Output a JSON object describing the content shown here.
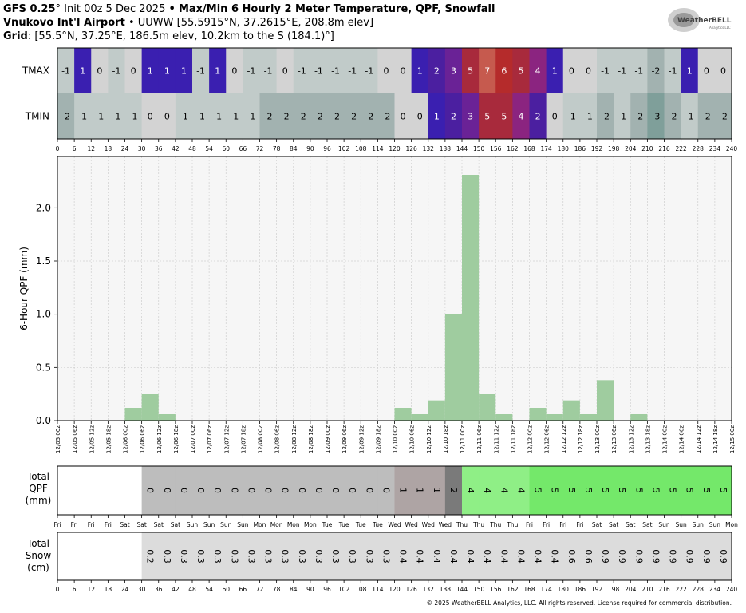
{
  "header": {
    "line1_model": "GFS 0.25",
    "line1_init": "° Init 00z 5 Dec 2025",
    "line1_sep": "•",
    "line1_title": "Max/Min 6 Hourly 2 Meter Temperature, QPF, Snowfall",
    "line2_site": "Vnukovo Int'l Airport",
    "line2_sep": "•",
    "line2_info": "UUWW [55.5915°N, 37.2615°E, 208.8m elev]",
    "line3_label": "Grid",
    "line3_info": ": [55.5°N, 37.25°E, 186.5m elev, 10.2km to the S (184.1)°]"
  },
  "logo": {
    "text": "WeatherBELL",
    "sub": "Analytics LLC"
  },
  "temp_panel": {
    "row_labels": [
      "TMAX",
      "TMIN"
    ],
    "tmax": [
      -1,
      1,
      0,
      -1,
      0,
      1,
      1,
      1,
      -1,
      1,
      0,
      -1,
      -1,
      0,
      -1,
      -1,
      -1,
      -1,
      -1,
      0,
      0,
      1,
      2,
      3,
      5,
      7,
      6,
      5,
      4,
      1,
      0,
      0,
      -1,
      -1,
      -1,
      -2,
      -1,
      1,
      0,
      0
    ],
    "tmin": [
      -2,
      -1,
      -1,
      -1,
      -1,
      0,
      0,
      -1,
      -1,
      -1,
      -1,
      -1,
      -2,
      -2,
      -2,
      -2,
      -2,
      -2,
      -2,
      -2,
      0,
      0,
      1,
      2,
      3,
      5,
      5,
      4,
      2,
      0,
      -1,
      -1,
      -2,
      -1,
      -2,
      -3,
      -2,
      -1,
      -2,
      -2
    ],
    "hour_ticks": [
      0,
      6,
      12,
      18,
      24,
      30,
      36,
      42,
      48,
      54,
      60,
      66,
      72,
      78,
      84,
      90,
      96,
      102,
      108,
      114,
      120,
      126,
      132,
      138,
      144,
      150,
      156,
      162,
      168,
      174,
      180,
      186,
      192,
      198,
      204,
      210,
      216,
      222,
      228,
      234,
      240
    ]
  },
  "chart_data": {
    "type": "bar",
    "ylabel": "6-Hour QPF (mm)",
    "ylim": [
      0,
      2.4
    ],
    "yticks": [
      "0.0",
      "0.5",
      "1.0",
      "1.5",
      "2.0"
    ],
    "grid": true,
    "categories": [
      "12/05 00z",
      "12/05 06z",
      "12/05 12z",
      "12/05 18z",
      "12/06 00z",
      "12/06 06z",
      "12/06 12z",
      "12/06 18z",
      "12/07 00z",
      "12/07 06z",
      "12/07 12z",
      "12/07 18z",
      "12/08 00z",
      "12/08 06z",
      "12/08 12z",
      "12/08 18z",
      "12/09 00z",
      "12/09 06z",
      "12/09 12z",
      "12/09 18z",
      "12/10 00z",
      "12/10 06z",
      "12/10 12z",
      "12/10 18z",
      "12/11 00z",
      "12/11 06z",
      "12/11 12z",
      "12/11 18z",
      "12/12 00z",
      "12/12 06z",
      "12/12 12z",
      "12/12 18z",
      "12/13 00z",
      "12/13 06z",
      "12/13 12z",
      "12/13 18z",
      "12/14 00z",
      "12/14 06z",
      "12/14 12z",
      "12/14 18z",
      "12/15 00z"
    ],
    "values": [
      0,
      0,
      0,
      0,
      0.12,
      0.25,
      0.06,
      0,
      0,
      0,
      0,
      0,
      0,
      0,
      0,
      0,
      0,
      0,
      0,
      0,
      0.12,
      0.06,
      0.19,
      1.0,
      2.31,
      0.25,
      0.06,
      0,
      0.12,
      0.06,
      0.19,
      0.06,
      0.38,
      0,
      0.06,
      0,
      0,
      0,
      0,
      0,
      0
    ]
  },
  "total_qpf": {
    "label_lines": [
      "Total",
      "QPF",
      "(mm)"
    ],
    "values": [
      "",
      "",
      "",
      "",
      "",
      "0",
      "0",
      "0",
      "0",
      "0",
      "0",
      "0",
      "0",
      "0",
      "0",
      "0",
      "0",
      "0",
      "0",
      "0",
      "1",
      "1",
      "1",
      "2",
      "4",
      "4",
      "4",
      "4",
      "5",
      "5",
      "5",
      "5",
      "5",
      "5",
      "5",
      "5",
      "5",
      "5",
      "5",
      "5"
    ],
    "days": [
      "Fri",
      "Fri",
      "Fri",
      "Fri",
      "Sat",
      "Sat",
      "Sat",
      "Sat",
      "Sun",
      "Sun",
      "Sun",
      "Sun",
      "Mon",
      "Mon",
      "Mon",
      "Mon",
      "Tue",
      "Tue",
      "Tue",
      "Tue",
      "Wed",
      "Wed",
      "Wed",
      "Wed",
      "Thu",
      "Thu",
      "Thu",
      "Thu",
      "Fri",
      "Fri",
      "Fri",
      "Fri",
      "Sat",
      "Sat",
      "Sat",
      "Sat",
      "Sun",
      "Sun",
      "Sun",
      "Sun",
      "Mon"
    ]
  },
  "total_snow": {
    "label_lines": [
      "Total",
      "Snow",
      "(cm)"
    ],
    "values": [
      "",
      "",
      "",
      "",
      "",
      "0.2",
      "0.3",
      "0.3",
      "0.3",
      "0.3",
      "0.3",
      "0.3",
      "0.3",
      "0.3",
      "0.3",
      "0.3",
      "0.3",
      "0.3",
      "0.3",
      "0.3",
      "0.4",
      "0.4",
      "0.4",
      "0.4",
      "0.4",
      "0.4",
      "0.4",
      "0.4",
      "0.4",
      "0.4",
      "0.6",
      "0.6",
      "0.9",
      "0.9",
      "0.9",
      "0.9",
      "0.9",
      "0.9",
      "0.9",
      "0.9"
    ]
  },
  "colors": {
    "bar": "#9fcc9f",
    "qpf_gray": "#bdbdbd",
    "qpf_1": "#aea4a4",
    "qpf_2": "#7a7a7a",
    "qpf_4": "#8fef86",
    "qpf_5": "#74e86a",
    "snow_fill": "#dcdcdc"
  },
  "footer": "© 2025 WeatherBELL Analytics, LLC. All rights reserved. License required for commercial distribution."
}
